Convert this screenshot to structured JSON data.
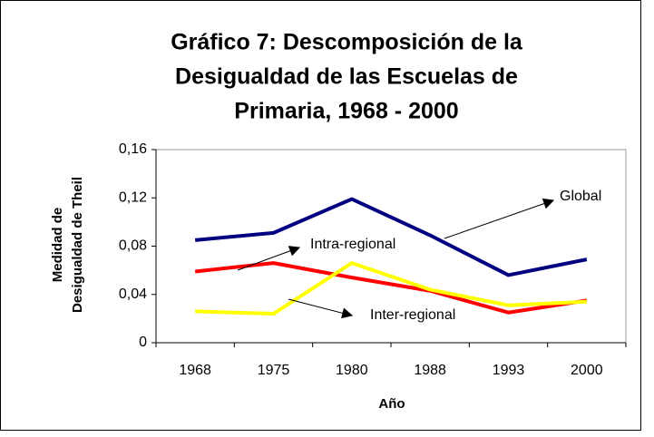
{
  "chart_data": {
    "type": "line",
    "title": [
      "Gráfico 7: Descomposición de la",
      "Desigualdad de las Escuelas de",
      "Primaria, 1968 - 2000"
    ],
    "x_label": "Año",
    "y_label": [
      "Medidad de",
      "Desigualdad de Theil"
    ],
    "categories": [
      "1968",
      "1975",
      "1980",
      "1988",
      "1993",
      "2000"
    ],
    "series": [
      {
        "name": "Global",
        "color": "#000080",
        "values": [
          0.085,
          0.091,
          0.119,
          0.089,
          0.056,
          0.069
        ]
      },
      {
        "name": "Intra-regional",
        "color": "#ff0000",
        "values": [
          0.059,
          0.066,
          0.054,
          0.043,
          0.025,
          0.035
        ]
      },
      {
        "name": "Inter-regional",
        "color": "#ffff00",
        "values": [
          0.026,
          0.024,
          0.066,
          0.044,
          0.031,
          0.034
        ]
      }
    ],
    "ylim": [
      0,
      0.16
    ],
    "yticks": [
      0,
      {
        "value": 0.04,
        "label": "0,04"
      },
      {
        "value": 0.08,
        "label": "0,08"
      },
      {
        "value": 0.12,
        "label": "0,12"
      },
      {
        "value": 0.16,
        "label": "0,16"
      }
    ],
    "grid": false
  }
}
